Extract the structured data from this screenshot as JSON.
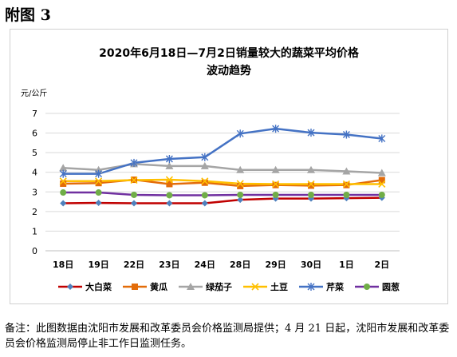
{
  "appendix_label": "附图 3",
  "footnote": "备注：此图数据由沈阳市发展和改革委员会价格监测局提供；4 月 21 日起，沈阳市发展和改革委员会价格监测局停止非工作日监测任务。",
  "chart_data": {
    "type": "line",
    "title_line1": "2020年6月18日—7月2日销量较大的蔬菜平均价格",
    "title_line2": "波动趋势",
    "ylabel": "元/公斤",
    "xlabel": "",
    "ylim": [
      0,
      7
    ],
    "yticks": [
      "0",
      "1",
      "2",
      "3",
      "4",
      "5",
      "6",
      "7"
    ],
    "grid": true,
    "legend_position": "bottom",
    "categories": [
      "18日",
      "19日",
      "22日",
      "23日",
      "24日",
      "28日",
      "29日",
      "30日",
      "1日",
      "2日"
    ],
    "series": [
      {
        "name": "大白菜",
        "color": "#c00000",
        "marker_color": "#4f81bd",
        "marker": "diamond",
        "values": [
          2.42,
          2.44,
          2.42,
          2.42,
          2.42,
          2.6,
          2.66,
          2.66,
          2.68,
          2.7
        ]
      },
      {
        "name": "黄瓜",
        "color": "#e36c09",
        "marker_color": "#e36c09",
        "marker": "square",
        "values": [
          3.42,
          3.45,
          3.62,
          3.4,
          3.47,
          3.3,
          3.35,
          3.32,
          3.35,
          3.6
        ]
      },
      {
        "name": "绿茄子",
        "color": "#a5a5a5",
        "marker_color": "#a5a5a5",
        "marker": "triangle",
        "values": [
          4.22,
          4.12,
          4.42,
          4.32,
          4.32,
          4.12,
          4.12,
          4.12,
          4.05,
          3.97
        ]
      },
      {
        "name": "土豆",
        "color": "#ffc000",
        "marker_color": "#ffc000",
        "marker": "x",
        "values": [
          3.55,
          3.55,
          3.6,
          3.62,
          3.55,
          3.42,
          3.4,
          3.4,
          3.4,
          3.4
        ]
      },
      {
        "name": "芹菜",
        "color": "#4472c4",
        "marker_color": "#4472c4",
        "marker": "star",
        "values": [
          3.92,
          3.92,
          4.48,
          4.68,
          4.77,
          5.97,
          6.22,
          6.02,
          5.92,
          5.72
        ]
      },
      {
        "name": "圆葱",
        "color": "#7030a0",
        "marker_color": "#70ad47",
        "marker": "circle",
        "values": [
          2.97,
          2.97,
          2.85,
          2.83,
          2.83,
          2.85,
          2.85,
          2.85,
          2.85,
          2.85
        ]
      }
    ]
  }
}
